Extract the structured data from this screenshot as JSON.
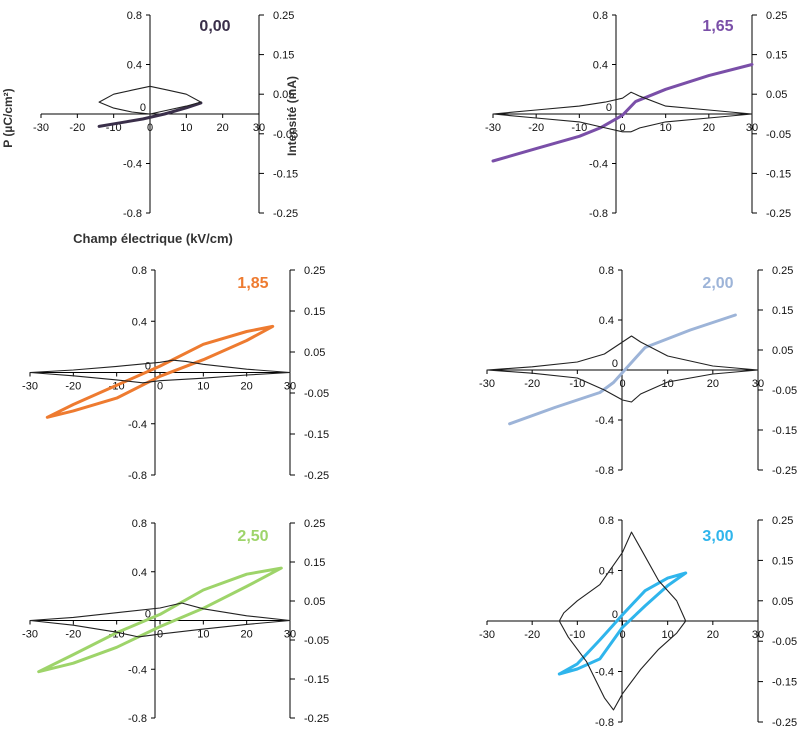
{
  "axis_titles": {
    "p": "P (µC/cm²)",
    "intensity": "Intensité (mA)",
    "field": "Champ électrique (kV/cm)"
  },
  "chart_data": [
    {
      "type": "line",
      "label": "0,00",
      "color": "#3a2f4a",
      "xlim": [
        -30,
        30
      ],
      "ylim": [
        -0.8,
        0.8
      ],
      "y2lim": [
        -0.25,
        0.25
      ],
      "x_ticks": [
        "-30",
        "-20",
        "-10",
        "0",
        "10",
        "20",
        "30"
      ],
      "y_ticks": [
        "-0.8",
        "-0.4",
        "0",
        "0.4",
        "0.8"
      ],
      "y2_ticks": [
        "-0.25",
        "-0.15",
        "-0.05",
        "0.05",
        "0.15",
        "0.25"
      ],
      "series": [
        {
          "role": "polarization",
          "x": [
            -14,
            -8,
            -2,
            4,
            10,
            14
          ],
          "y": [
            -0.1,
            -0.07,
            -0.04,
            0.0,
            0.05,
            0.09
          ]
        },
        {
          "role": "current",
          "x": [
            -14,
            -10,
            -5,
            0,
            5,
            10,
            14,
            10,
            5,
            0,
            -5,
            -10,
            -14
          ],
          "y": [
            0.03,
            0.05,
            0.06,
            0.07,
            0.06,
            0.05,
            0.03,
            0.02,
            0.01,
            0.0,
            0.005,
            0.015,
            0.03
          ]
        }
      ]
    },
    {
      "type": "line",
      "label": "1,65",
      "color": "#7a4fa8",
      "xlim": [
        -30,
        30
      ],
      "ylim": [
        -0.8,
        0.8
      ],
      "y2lim": [
        -0.25,
        0.25
      ],
      "x_ticks": [
        "-30",
        "-20",
        "-10",
        "0",
        "10",
        "20",
        "30"
      ],
      "y_ticks": [
        "-0.8",
        "-0.4",
        "0",
        "0.4",
        "0.8"
      ],
      "y2_ticks": [
        "-0.25",
        "-0.15",
        "-0.05",
        "0.05",
        "0.15",
        "0.25"
      ],
      "series": [
        {
          "role": "polarization",
          "x": [
            -30,
            -20,
            -10,
            -5,
            0,
            3,
            10,
            20,
            30
          ],
          "y": [
            -0.38,
            -0.28,
            -0.18,
            -0.11,
            -0.01,
            0.1,
            0.2,
            0.31,
            0.4
          ]
        },
        {
          "role": "current",
          "x": [
            -30,
            -20,
            -10,
            -4,
            0,
            2,
            4,
            10,
            20,
            30,
            20,
            10,
            4,
            2,
            0,
            -4,
            -10,
            -20,
            -30
          ],
          "y": [
            0.0,
            0.01,
            0.02,
            0.03,
            0.04,
            0.055,
            0.045,
            0.02,
            0.01,
            0.0,
            -0.01,
            -0.02,
            -0.035,
            -0.045,
            -0.045,
            -0.035,
            -0.02,
            -0.01,
            0.0
          ]
        }
      ]
    },
    {
      "type": "line",
      "label": "1,85",
      "color": "#ee7b30",
      "xlim": [
        -30,
        30
      ],
      "ylim": [
        -0.8,
        0.8
      ],
      "y2lim": [
        -0.25,
        0.25
      ],
      "x_ticks": [
        "-30",
        "-20",
        "-10",
        "0",
        "10",
        "20",
        "30"
      ],
      "y_ticks": [
        "-0.8",
        "-0.4",
        "0",
        "0.4",
        "0.8"
      ],
      "y2_ticks": [
        "-0.25",
        "-0.15",
        "-0.05",
        "0.05",
        "0.15",
        "0.25"
      ],
      "series": [
        {
          "role": "polarization",
          "x": [
            -26,
            -20,
            -10,
            0,
            10,
            20,
            26,
            20,
            10,
            0,
            -10,
            -20,
            -26
          ],
          "y": [
            -0.35,
            -0.3,
            -0.2,
            -0.03,
            0.1,
            0.25,
            0.36,
            0.32,
            0.22,
            0.05,
            -0.1,
            -0.25,
            -0.35
          ]
        },
        {
          "role": "current",
          "x": [
            -30,
            -20,
            -10,
            0,
            3,
            6,
            10,
            20,
            30,
            20,
            10,
            0,
            -4,
            -10,
            -20,
            -30
          ],
          "y": [
            0.0,
            0.006,
            0.015,
            0.025,
            0.03,
            0.027,
            0.02,
            0.008,
            0.0,
            -0.006,
            -0.014,
            -0.02,
            -0.025,
            -0.018,
            -0.008,
            0.0
          ]
        }
      ]
    },
    {
      "type": "line",
      "label": "2,00",
      "color": "#9db4d8",
      "xlim": [
        -30,
        30
      ],
      "ylim": [
        -0.8,
        0.8
      ],
      "y2lim": [
        -0.25,
        0.25
      ],
      "x_ticks": [
        "-30",
        "-20",
        "-10",
        "0",
        "10",
        "20",
        "30"
      ],
      "y_ticks": [
        "-0.8",
        "-0.4",
        "0",
        "0.4",
        "0.8"
      ],
      "y2_ticks": [
        "-0.25",
        "-0.15",
        "-0.05",
        "0.05",
        "0.15",
        "0.25"
      ],
      "series": [
        {
          "role": "polarization",
          "x": [
            -25,
            -15,
            -5,
            -2,
            0,
            3,
            5,
            15,
            25
          ],
          "y": [
            -0.43,
            -0.3,
            -0.18,
            -0.1,
            -0.02,
            0.1,
            0.18,
            0.32,
            0.44
          ]
        },
        {
          "role": "current",
          "x": [
            -30,
            -20,
            -10,
            -4,
            0,
            2,
            4,
            10,
            20,
            30,
            20,
            10,
            4,
            2,
            0,
            -4,
            -10,
            -20,
            -30
          ],
          "y": [
            0.0,
            0.008,
            0.02,
            0.04,
            0.07,
            0.085,
            0.07,
            0.035,
            0.01,
            0.0,
            -0.01,
            -0.03,
            -0.06,
            -0.08,
            -0.075,
            -0.05,
            -0.02,
            -0.008,
            0.0
          ]
        }
      ]
    },
    {
      "type": "line",
      "label": "2,50",
      "color": "#9ed46a",
      "xlim": [
        -30,
        30
      ],
      "ylim": [
        -0.8,
        0.8
      ],
      "y2lim": [
        -0.25,
        0.25
      ],
      "x_ticks": [
        "-30",
        "-20",
        "-10",
        "0",
        "10",
        "20",
        "30"
      ],
      "y_ticks": [
        "-0.8",
        "-0.4",
        "0",
        "0.4",
        "0.8"
      ],
      "y2_ticks": [
        "-0.25",
        "-0.15",
        "-0.05",
        "0.05",
        "0.15",
        "0.25"
      ],
      "series": [
        {
          "role": "polarization",
          "x": [
            -28,
            -20,
            -10,
            0,
            10,
            20,
            28,
            20,
            10,
            0,
            -10,
            -20,
            -28
          ],
          "y": [
            -0.42,
            -0.35,
            -0.22,
            -0.05,
            0.1,
            0.28,
            0.43,
            0.38,
            0.25,
            0.05,
            -0.1,
            -0.28,
            -0.42
          ]
        },
        {
          "role": "current",
          "x": [
            -30,
            -20,
            -10,
            0,
            5,
            10,
            20,
            30,
            20,
            10,
            0,
            -5,
            -10,
            -20,
            -30
          ],
          "y": [
            0.0,
            0.008,
            0.02,
            0.032,
            0.045,
            0.03,
            0.012,
            0.0,
            -0.01,
            -0.022,
            -0.035,
            -0.042,
            -0.03,
            -0.012,
            0.0
          ]
        }
      ]
    },
    {
      "type": "line",
      "label": "3,00",
      "color": "#2fb5ec",
      "xlim": [
        -30,
        30
      ],
      "ylim": [
        -0.8,
        0.8
      ],
      "y2lim": [
        -0.25,
        0.25
      ],
      "x_ticks": [
        "-30",
        "-20",
        "-10",
        "0",
        "10",
        "20",
        "30"
      ],
      "y_ticks": [
        "-0.8",
        "-0.4",
        "0",
        "0.4",
        "0.8"
      ],
      "y2_ticks": [
        "-0.25",
        "-0.15",
        "-0.05",
        "0.05",
        "0.15",
        "0.25"
      ],
      "series": [
        {
          "role": "polarization",
          "x": [
            -14,
            -10,
            -5,
            0,
            5,
            10,
            14,
            10,
            5,
            0,
            -5,
            -10,
            -14
          ],
          "y": [
            -0.42,
            -0.38,
            -0.3,
            -0.05,
            0.12,
            0.28,
            0.38,
            0.34,
            0.24,
            0.05,
            -0.15,
            -0.34,
            -0.42
          ]
        },
        {
          "role": "current",
          "x": [
            -14,
            -13,
            -10,
            -5,
            0,
            2,
            4,
            8,
            12,
            14,
            12,
            8,
            4,
            0,
            -2,
            -4,
            -8,
            -12,
            -14
          ],
          "y": [
            0.0,
            0.02,
            0.05,
            0.09,
            0.17,
            0.22,
            0.18,
            0.1,
            0.05,
            0.0,
            -0.03,
            -0.07,
            -0.12,
            -0.18,
            -0.22,
            -0.19,
            -0.1,
            -0.04,
            0.0
          ]
        }
      ]
    }
  ]
}
